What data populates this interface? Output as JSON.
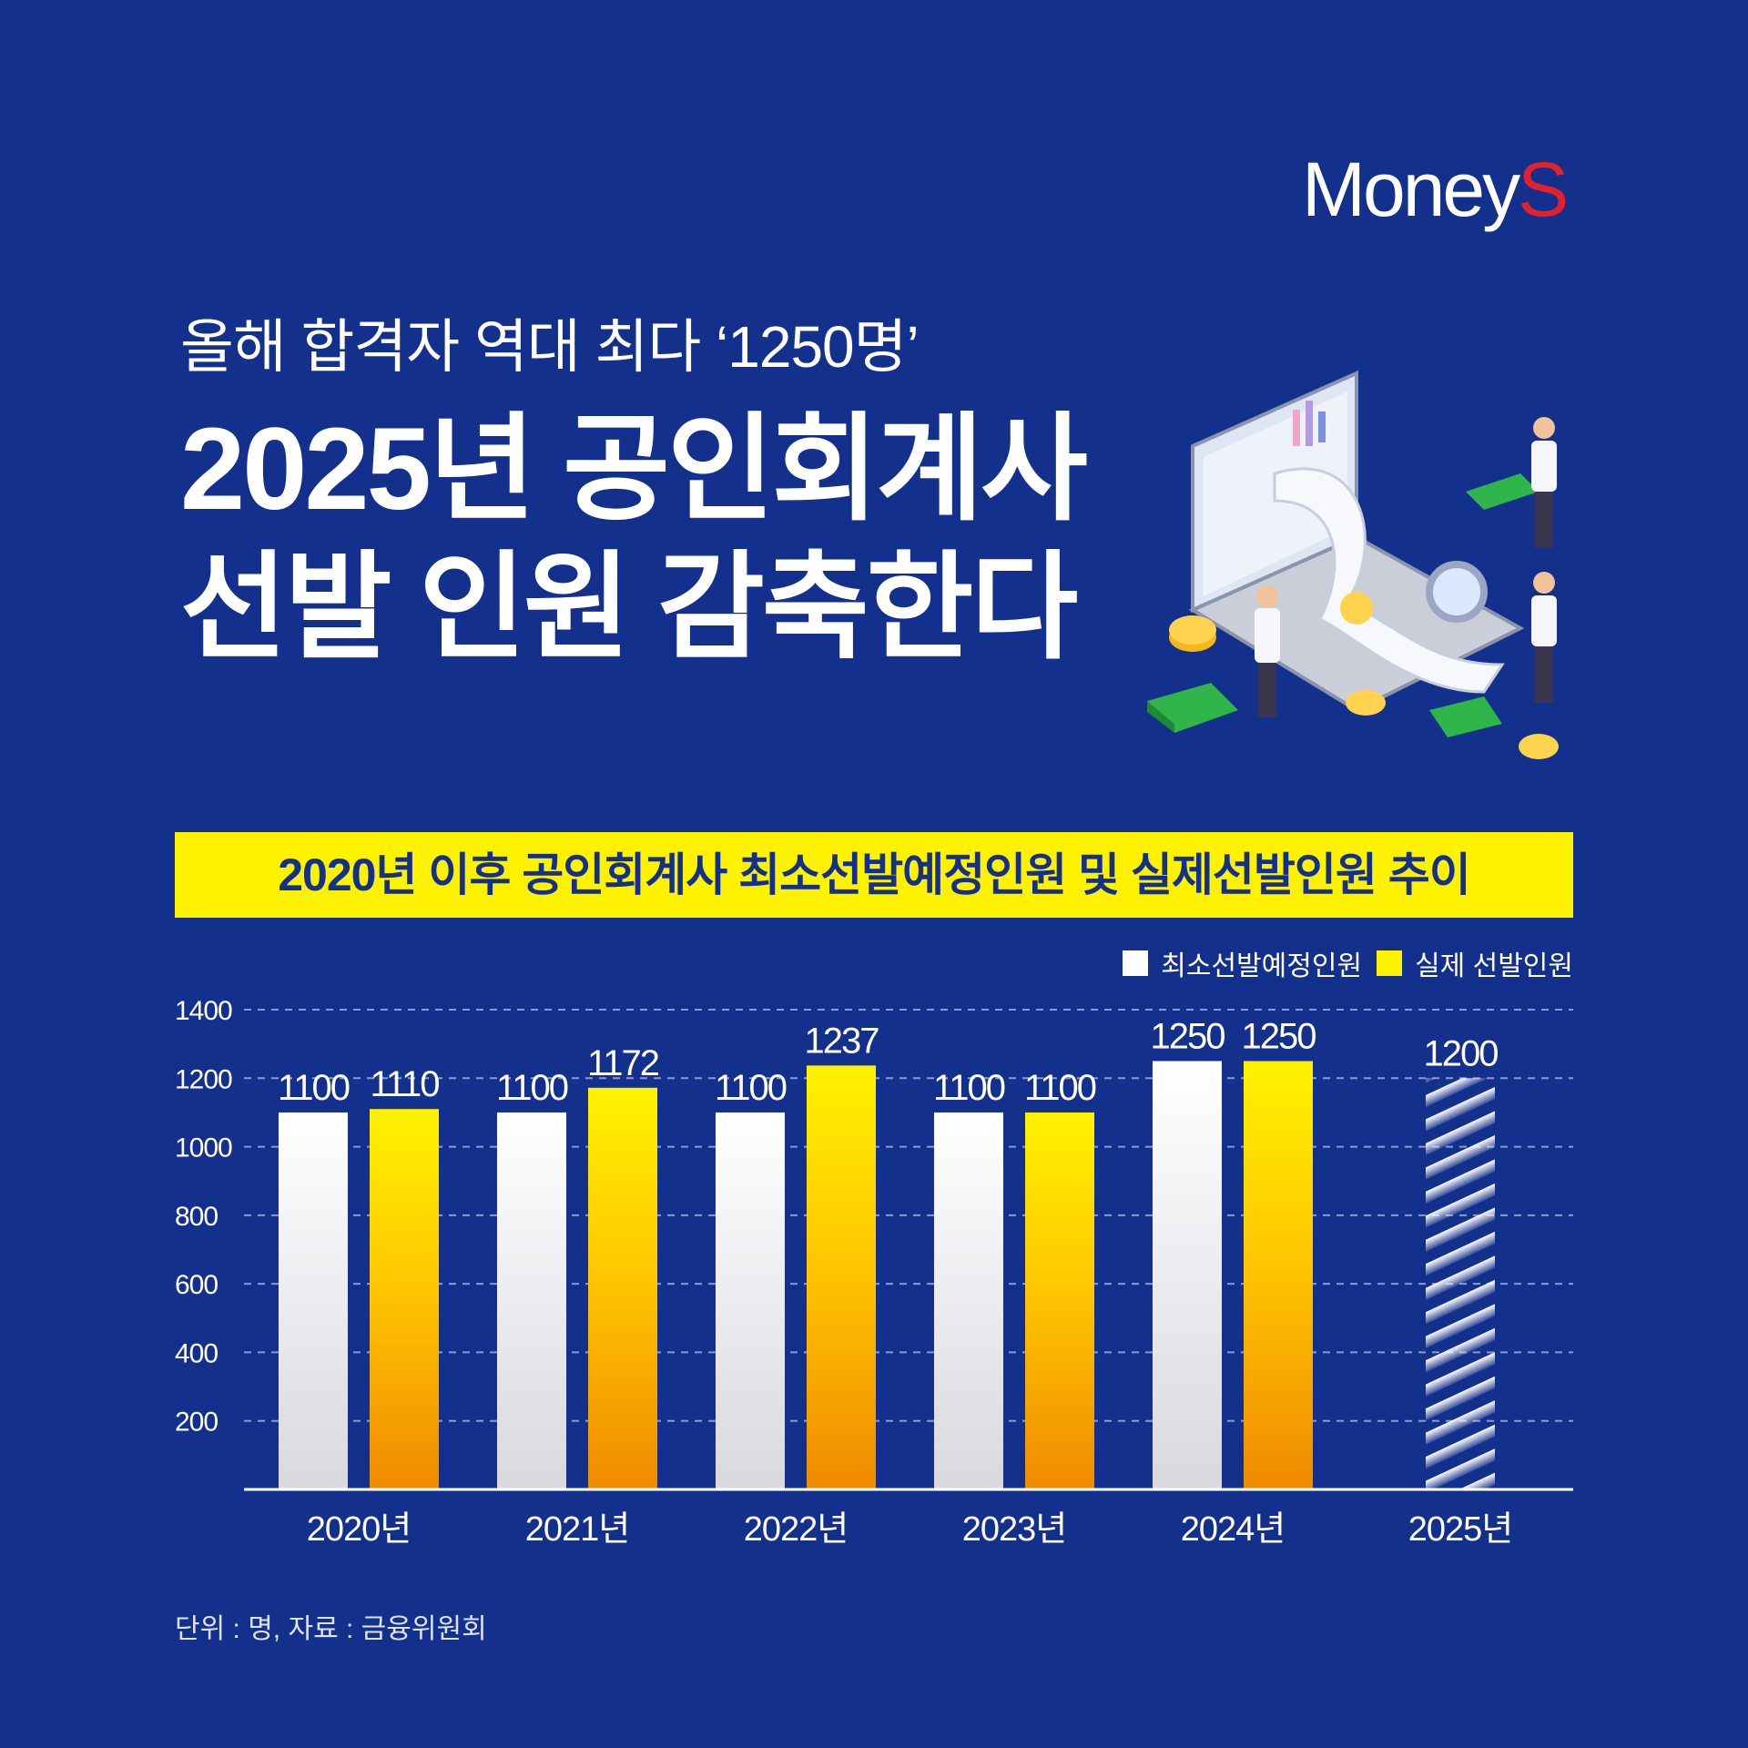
{
  "brand": {
    "logo_main": "Money",
    "logo_accent": "S"
  },
  "header": {
    "subtitle": "올해 합격자 역대 최다 ‘1250명’",
    "title_line1": "2025년 공인회계사",
    "title_line2": "선발 인원 감축한다"
  },
  "banner": {
    "text": "2020년 이후 공인회계사 최소선발예정인원 및 실제선발인원 추이"
  },
  "footnote": {
    "text": "단위 : 명, 자료 : 금융위원회"
  },
  "colors": {
    "background": "#13308c",
    "planned": "#ffffff",
    "actual": "#ffd200",
    "actual_bottom": "#f08a00",
    "banner": "#fff200"
  },
  "chart_data": {
    "type": "bar",
    "categories": [
      "2020년",
      "2021년",
      "2022년",
      "2023년",
      "2024년",
      "2025년"
    ],
    "series": [
      {
        "name": "최소선발예정인원",
        "values": [
          1100,
          1100,
          1100,
          1100,
          1250,
          1200
        ],
        "value_labels": [
          "1100",
          "1100",
          "1100",
          "1100",
          "1250",
          "1200"
        ]
      },
      {
        "name": "실제 선발인원",
        "values": [
          1110,
          1172,
          1237,
          1100,
          1250,
          null
        ],
        "value_labels": [
          "1110",
          "1172",
          "1237",
          "1100",
          "1250",
          ""
        ]
      }
    ],
    "projected_category": "2025년",
    "ylim": [
      0,
      1400
    ],
    "yticks": [
      "200",
      "400",
      "600",
      "800",
      "1000",
      "1200",
      "1400"
    ],
    "ytick_values": [
      200,
      400,
      600,
      800,
      1000,
      1200,
      1400
    ],
    "grid": "dashed horizontal",
    "legend_position": "top-right"
  }
}
